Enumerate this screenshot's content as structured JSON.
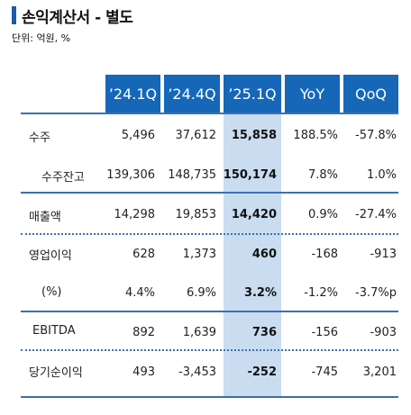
{
  "title": "손익계산서 - 별도",
  "unit": "단위: 억원, %",
  "headers": [
    "’24.1Q",
    "’24.4Q",
    "’25.1Q",
    "YoY",
    "QoQ"
  ],
  "rows": [
    {
      "label": "수주",
      "values": [
        "5,496",
        "37,612",
        "15,858",
        "188.5%",
        "-57.8%"
      ]
    },
    {
      "label": "수주잔고",
      "values": [
        "139,306",
        "148,735",
        "150,174",
        "7.8%",
        "1.0%"
      ]
    },
    {
      "label": "매출액",
      "values": [
        "14,298",
        "19,853",
        "14,420",
        "0.9%",
        "-27.4%"
      ]
    },
    {
      "label": "영업이익",
      "values": [
        "628",
        "1,373",
        "460",
        "-168",
        "-913"
      ]
    },
    {
      "label": "(%)",
      "values": [
        "4.4%",
        "6.9%",
        "3.2%",
        "-1.2%",
        "-3.7%p"
      ]
    },
    {
      "label": "EBITDA",
      "values": [
        "892",
        "1,639",
        "736",
        "-156",
        "-903"
      ]
    },
    {
      "label": "당기순이익",
      "values": [
        "493",
        "-3,453",
        "-252",
        "-745",
        "3,201"
      ]
    }
  ],
  "colors": {
    "header_bg": "#1667b8",
    "highlight_bg": "#c9dcf0",
    "rule": "#3d6fb0",
    "title_bar": "#1f5aa6"
  }
}
